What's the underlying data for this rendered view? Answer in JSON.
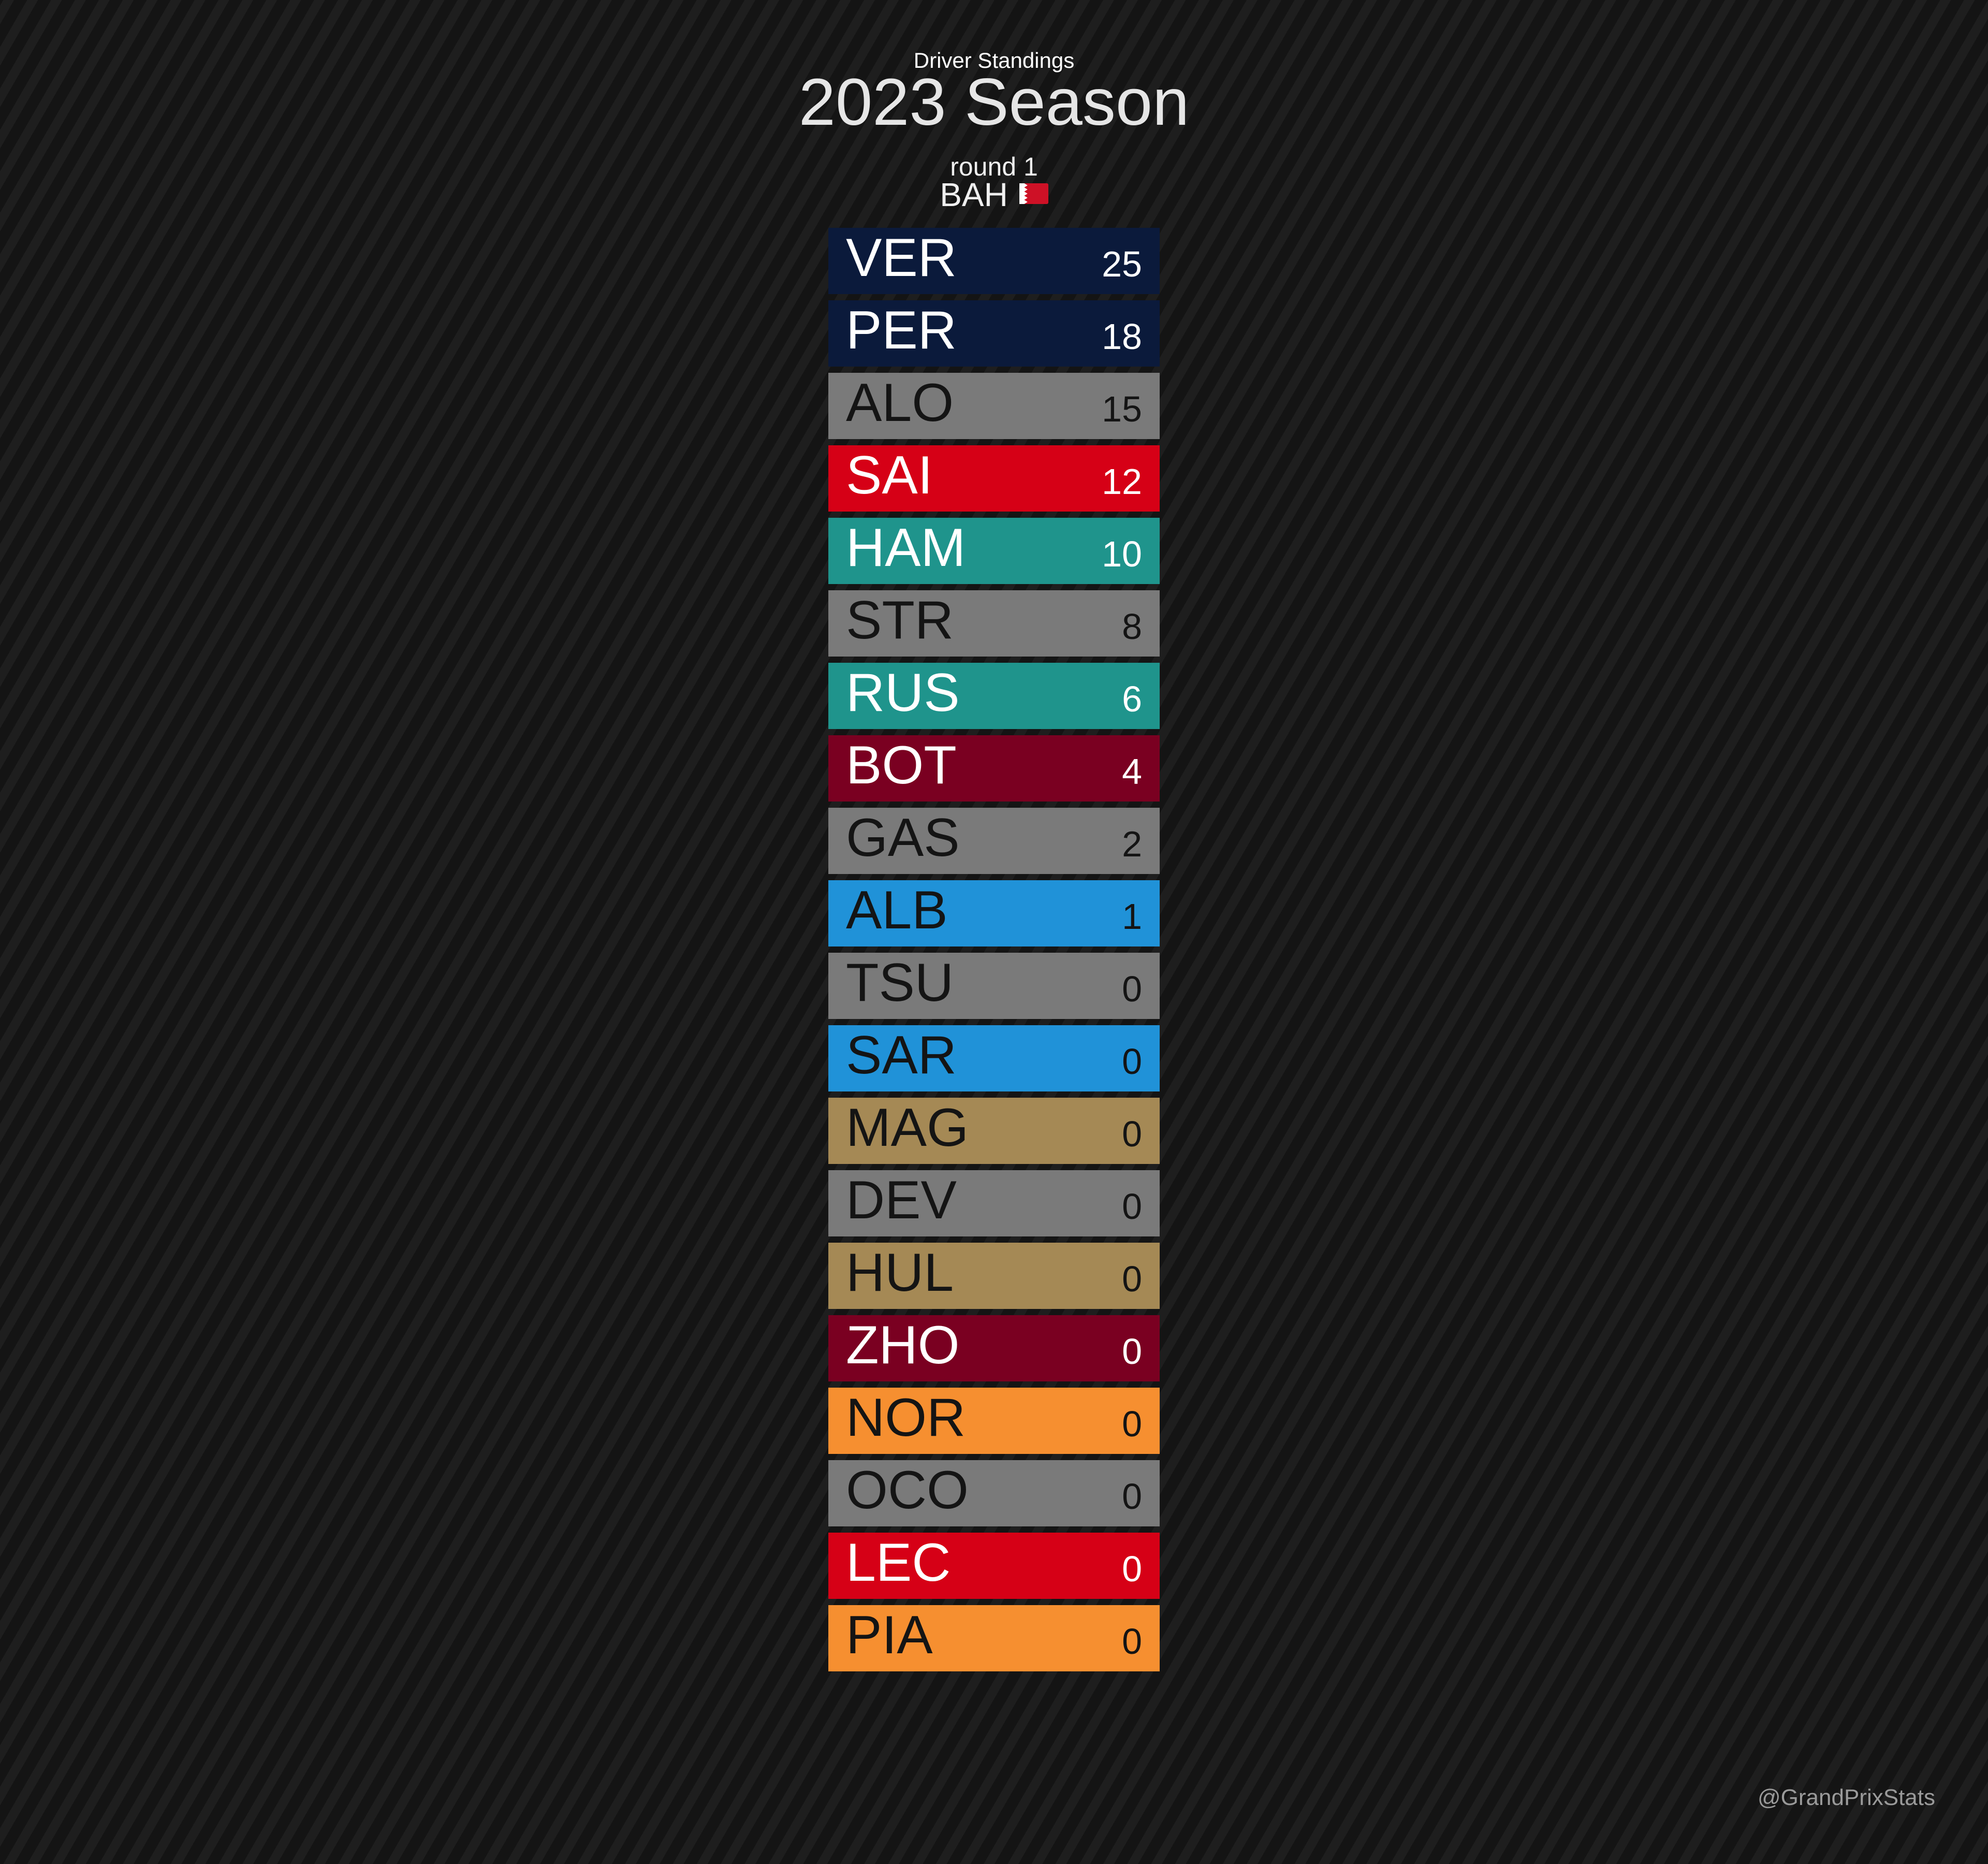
{
  "header": {
    "subtitle": "Driver Standings",
    "title": "2023 Season",
    "round": "round 1",
    "race": "BAH",
    "flag_icon": "bahrain-flag-icon"
  },
  "standings": [
    {
      "code": "VER",
      "points": "25",
      "bg": "#0b1a3b",
      "fg": "#ffffff"
    },
    {
      "code": "PER",
      "points": "18",
      "bg": "#0b1a3b",
      "fg": "#ffffff"
    },
    {
      "code": "ALO",
      "points": "15",
      "bg": "#7a7a7a",
      "fg": "#141414"
    },
    {
      "code": "SAI",
      "points": "12",
      "bg": "#d60016",
      "fg": "#ffffff"
    },
    {
      "code": "HAM",
      "points": "10",
      "bg": "#1f948c",
      "fg": "#ffffff"
    },
    {
      "code": "STR",
      "points": "8",
      "bg": "#7a7a7a",
      "fg": "#141414"
    },
    {
      "code": "RUS",
      "points": "6",
      "bg": "#1f948c",
      "fg": "#ffffff"
    },
    {
      "code": "BOT",
      "points": "4",
      "bg": "#7a0021",
      "fg": "#ffffff"
    },
    {
      "code": "GAS",
      "points": "2",
      "bg": "#7a7a7a",
      "fg": "#141414"
    },
    {
      "code": "ALB",
      "points": "1",
      "bg": "#2092d8",
      "fg": "#141414"
    },
    {
      "code": "TSU",
      "points": "0",
      "bg": "#7a7a7a",
      "fg": "#141414"
    },
    {
      "code": "SAR",
      "points": "0",
      "bg": "#2092d8",
      "fg": "#141414"
    },
    {
      "code": "MAG",
      "points": "0",
      "bg": "#a58955",
      "fg": "#141414"
    },
    {
      "code": "DEV",
      "points": "0",
      "bg": "#7a7a7a",
      "fg": "#141414"
    },
    {
      "code": "HUL",
      "points": "0",
      "bg": "#a58955",
      "fg": "#141414"
    },
    {
      "code": "ZHO",
      "points": "0",
      "bg": "#7a0021",
      "fg": "#ffffff"
    },
    {
      "code": "NOR",
      "points": "0",
      "bg": "#f68f30",
      "fg": "#141414"
    },
    {
      "code": "OCO",
      "points": "0",
      "bg": "#7a7a7a",
      "fg": "#141414"
    },
    {
      "code": "LEC",
      "points": "0",
      "bg": "#d60016",
      "fg": "#ffffff"
    },
    {
      "code": "PIA",
      "points": "0",
      "bg": "#f68f30",
      "fg": "#141414"
    }
  ],
  "watermark": "@GrandPrixStats"
}
